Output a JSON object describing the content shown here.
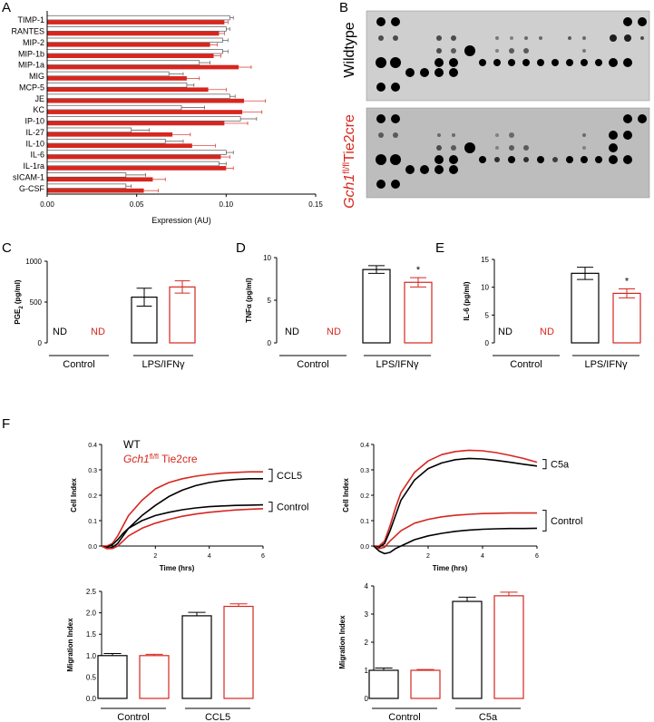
{
  "colors": {
    "red": "#d7261e",
    "black": "#000000",
    "blot_bg": "#cfcfcf",
    "blot_bg2": "#bdbdbd"
  },
  "labels": {
    "A": "A",
    "B": "B",
    "C": "C",
    "D": "D",
    "E": "E",
    "F": "F"
  },
  "panelB": {
    "wildtype": "Wildtype",
    "gch_prefix": "Gch1",
    "gch_sup": "fl/fl",
    "gch_suffix": "Tie2cre"
  },
  "legend": {
    "wt": "WT",
    "gch_prefix": "Gch1",
    "gch_sup": "fl/fl",
    "gch_suffix": " Tie2cre"
  },
  "chart_data": [
    {
      "id": "A",
      "type": "bar",
      "orientation": "horizontal",
      "categories": [
        "TIMP-1",
        "RANTES",
        "MIP-2",
        "MIP-1b",
        "MIP-1a",
        "MIG",
        "MCP-5",
        "JE",
        "KC",
        "IP-10",
        "IL-27",
        "IL-10",
        "IL-6",
        "IL-1ra",
        "sICAM-1",
        "G-CSF"
      ],
      "series": [
        {
          "name": "WT",
          "color": "white",
          "values": [
            0.102,
            0.1,
            0.098,
            0.098,
            0.085,
            0.068,
            0.078,
            0.102,
            0.075,
            0.108,
            0.047,
            0.066,
            0.1,
            0.096,
            0.044,
            0.044
          ]
        },
        {
          "name": "Gch1 fl/fl Tie2cre",
          "color": "red",
          "values": [
            0.099,
            0.096,
            0.091,
            0.093,
            0.107,
            0.078,
            0.09,
            0.11,
            0.109,
            0.099,
            0.07,
            0.081,
            0.097,
            0.1,
            0.059,
            0.054
          ]
        }
      ],
      "errors_wt": [
        0.002,
        0.002,
        0.003,
        0.003,
        0.006,
        0.008,
        0.004,
        0.003,
        0.013,
        0.009,
        0.01,
        0.01,
        0.004,
        0.004,
        0.011,
        0.003
      ],
      "errors_ko": [
        0.002,
        0.003,
        0.004,
        0.004,
        0.007,
        0.007,
        0.01,
        0.012,
        0.011,
        0.013,
        0.01,
        0.013,
        0.005,
        0.004,
        0.007,
        0.008
      ],
      "xlabel": "Expression (AU)",
      "xlim": [
        0,
        0.15
      ],
      "xticks": [
        "0.00",
        "0.05",
        "0.10",
        "0.15"
      ]
    },
    {
      "id": "C",
      "type": "bar",
      "ylabel": "PGE2 (pg/ml)",
      "ylabel_main": "PGE",
      "ylabel_sub": "2",
      "ylabel_unit": " (pg/ml)",
      "ylim": [
        0,
        1000
      ],
      "yticks": [
        "0",
        "500",
        "1000"
      ],
      "groups": [
        "Control",
        "LPS/IFNγ"
      ],
      "nd_text": "ND",
      "series": [
        {
          "name": "WT",
          "values": [
            null,
            560
          ],
          "errors": [
            null,
            110
          ]
        },
        {
          "name": "Gch1 fl/fl Tie2cre",
          "values": [
            null,
            685
          ],
          "errors": [
            null,
            75
          ]
        }
      ],
      "significance": ""
    },
    {
      "id": "D",
      "type": "bar",
      "ylabel": "TNFα (pg/ml)",
      "ylim": [
        0,
        10
      ],
      "yticks": [
        "0",
        "5",
        "10"
      ],
      "groups": [
        "Control",
        "LPS/IFNγ"
      ],
      "nd_text": "ND",
      "series": [
        {
          "name": "WT",
          "values": [
            null,
            8.6
          ],
          "errors": [
            null,
            0.45
          ]
        },
        {
          "name": "Gch1 fl/fl Tie2cre",
          "values": [
            null,
            7.1
          ],
          "errors": [
            null,
            0.55
          ]
        }
      ],
      "significance": "*"
    },
    {
      "id": "E",
      "type": "bar",
      "ylabel": "IL-6 (pg/ml)",
      "ylim": [
        0,
        15
      ],
      "yticks": [
        "0",
        "5",
        "10",
        "15"
      ],
      "groups": [
        "Control",
        "LPS/IFNγ"
      ],
      "nd_text": "ND",
      "series": [
        {
          "name": "WT",
          "values": [
            null,
            12.5
          ],
          "errors": [
            null,
            1.1
          ]
        },
        {
          "name": "Gch1 fl/fl Tie2cre",
          "values": [
            null,
            8.9
          ],
          "errors": [
            null,
            0.8
          ]
        }
      ],
      "significance": "*"
    },
    {
      "id": "F1",
      "type": "line",
      "xlabel": "Time (hrs)",
      "ylabel": "Cell Index",
      "xlim": [
        0,
        6
      ],
      "ylim": [
        0,
        0.4
      ],
      "xticks": [
        "2",
        "4",
        "6"
      ],
      "yticks": [
        "0.0",
        "0.1",
        "0.2",
        "0.3",
        "0.4"
      ],
      "x": [
        0,
        0.2,
        0.4,
        0.6,
        0.8,
        1,
        1.5,
        2,
        2.5,
        3,
        3.5,
        4,
        4.5,
        5,
        5.5,
        6
      ],
      "series": [
        {
          "name": "KO CCL5",
          "color": "red",
          "values": [
            0,
            0,
            0.01,
            0.04,
            0.08,
            0.12,
            0.18,
            0.225,
            0.25,
            0.265,
            0.275,
            0.282,
            0.287,
            0.29,
            0.292,
            0.292
          ]
        },
        {
          "name": "WT CCL5",
          "color": "black",
          "values": [
            0,
            -0.01,
            -0.005,
            0.01,
            0.04,
            0.07,
            0.12,
            0.16,
            0.195,
            0.22,
            0.238,
            0.25,
            0.258,
            0.262,
            0.265,
            0.265
          ]
        },
        {
          "name": "WT Control",
          "color": "black",
          "values": [
            0,
            -0.005,
            0.005,
            0.025,
            0.05,
            0.07,
            0.1,
            0.12,
            0.133,
            0.143,
            0.15,
            0.155,
            0.158,
            0.16,
            0.161,
            0.162
          ]
        },
        {
          "name": "KO Control",
          "color": "red",
          "values": [
            0,
            -0.01,
            -0.01,
            0.0,
            0.02,
            0.04,
            0.07,
            0.09,
            0.105,
            0.117,
            0.126,
            0.133,
            0.138,
            0.142,
            0.145,
            0.147
          ]
        }
      ],
      "brackets": [
        "CCL5",
        "Control"
      ]
    },
    {
      "id": "F2",
      "type": "line",
      "xlabel": "Time (hrs)",
      "ylabel": "Cell Index",
      "xlim": [
        0,
        6
      ],
      "ylim": [
        0,
        0.4
      ],
      "xticks": [
        "2",
        "4",
        "6"
      ],
      "yticks": [
        "0.0",
        "0.1",
        "0.2",
        "0.3",
        "0.4"
      ],
      "x": [
        0,
        0.2,
        0.4,
        0.6,
        0.8,
        1,
        1.5,
        2,
        2.5,
        3,
        3.5,
        4,
        4.5,
        5,
        5.5,
        6
      ],
      "series": [
        {
          "name": "KO C5a",
          "color": "red",
          "values": [
            0,
            0.0,
            0.02,
            0.08,
            0.15,
            0.21,
            0.29,
            0.335,
            0.36,
            0.372,
            0.377,
            0.375,
            0.368,
            0.357,
            0.345,
            0.33
          ]
        },
        {
          "name": "WT C5a",
          "color": "black",
          "values": [
            0,
            -0.005,
            0.01,
            0.06,
            0.12,
            0.18,
            0.26,
            0.305,
            0.327,
            0.34,
            0.345,
            0.343,
            0.337,
            0.33,
            0.322,
            0.315
          ]
        },
        {
          "name": "KO Control",
          "color": "red",
          "values": [
            0,
            -0.01,
            -0.005,
            0.02,
            0.04,
            0.06,
            0.09,
            0.105,
            0.115,
            0.121,
            0.125,
            0.128,
            0.129,
            0.13,
            0.13,
            0.13
          ]
        },
        {
          "name": "WT Control",
          "color": "black",
          "values": [
            0,
            -0.02,
            -0.03,
            -0.025,
            -0.01,
            0.0,
            0.025,
            0.04,
            0.05,
            0.058,
            0.063,
            0.066,
            0.068,
            0.069,
            0.069,
            0.07
          ]
        }
      ],
      "brackets": [
        "C5a",
        "Control"
      ]
    },
    {
      "id": "F3",
      "type": "bar",
      "ylabel": "Migration Index",
      "ylim": [
        0,
        2.5
      ],
      "yticks": [
        "0.0",
        "0.5",
        "1.0",
        "1.5",
        "2.0",
        "2.5"
      ],
      "groups": [
        "Control",
        "CCL5"
      ],
      "series": [
        {
          "name": "WT",
          "values": [
            1.0,
            1.93
          ],
          "errors": [
            0.05,
            0.08
          ]
        },
        {
          "name": "Gch1 fl/fl Tie2cre",
          "values": [
            1.0,
            2.15
          ],
          "errors": [
            0.03,
            0.06
          ]
        }
      ]
    },
    {
      "id": "F4",
      "type": "bar",
      "ylabel": "Migration Index",
      "ylim": [
        0,
        4
      ],
      "yticks": [
        "0",
        "1",
        "2",
        "3",
        "4"
      ],
      "groups": [
        "Control",
        "C5a"
      ],
      "series": [
        {
          "name": "WT",
          "values": [
            1.0,
            3.45
          ],
          "errors": [
            0.08,
            0.15
          ]
        },
        {
          "name": "Gch1 fl/fl Tie2cre",
          "values": [
            1.0,
            3.65
          ],
          "errors": [
            0.03,
            0.13
          ]
        }
      ]
    }
  ]
}
